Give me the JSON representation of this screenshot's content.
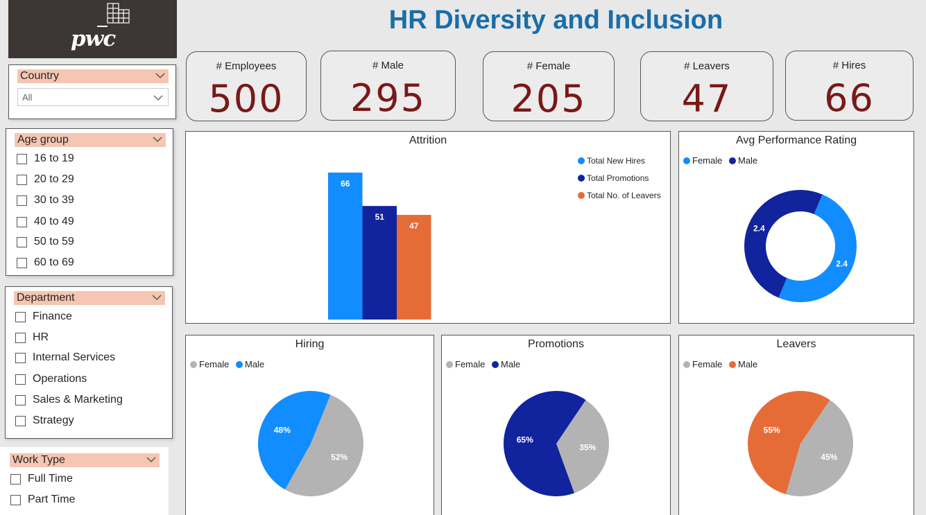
{
  "title": "HR Diversity and Inclusion",
  "logo": {
    "text": "pwc"
  },
  "colors": {
    "title": "#1a6ea8",
    "kpi_value": "#7a1818",
    "slicer_header": "#f5c6b2",
    "light_blue": "#118dff",
    "dark_blue": "#12239e",
    "orange": "#e66c37",
    "grey": "#b3b3b3"
  },
  "kpis": [
    {
      "label": "# Employees",
      "value": "500"
    },
    {
      "label": "# Male",
      "value": "295"
    },
    {
      "label": "# Female",
      "value": "205"
    },
    {
      "label": "# Leavers",
      "value": "47"
    },
    {
      "label": "# Hires",
      "value": "66"
    }
  ],
  "slicers": {
    "country": {
      "title": "Country",
      "selected": "All"
    },
    "age_group": {
      "title": "Age group",
      "options": [
        "16 to 19",
        "20 to 29",
        "30 to 39",
        "40 to 49",
        "50 to 59",
        "60 to 69"
      ]
    },
    "department": {
      "title": "Department",
      "options": [
        "Finance",
        "HR",
        "Internal Services",
        "Operations",
        "Sales & Marketing",
        "Strategy"
      ]
    },
    "work_type": {
      "title": "Work Type",
      "options": [
        "Full Time",
        "Part Time"
      ]
    }
  },
  "chart_data": [
    {
      "type": "bar",
      "title": "Attrition",
      "series": [
        {
          "name": "Total New Hires",
          "values": [
            66
          ],
          "color": "#118dff"
        },
        {
          "name": "Total Promotions",
          "values": [
            51
          ],
          "color": "#12239e"
        },
        {
          "name": "Total No. of Leavers",
          "values": [
            47
          ],
          "color": "#e66c37"
        }
      ],
      "data_labels": [
        "66",
        "51",
        "47"
      ],
      "legend": "top-right",
      "grid": false
    },
    {
      "type": "pie",
      "variant": "donut",
      "title": "Avg Performance Rating",
      "labels": [
        "Female",
        "Male"
      ],
      "values": [
        2.4,
        2.4
      ],
      "data_labels": [
        "2.4",
        "2.4"
      ],
      "colors": [
        "#118dff",
        "#12239e"
      ],
      "legend": "top-left"
    },
    {
      "type": "pie",
      "title": "Hiring",
      "labels": [
        "Female",
        "Male"
      ],
      "values": [
        52,
        48
      ],
      "data_labels": [
        "52%",
        "48%"
      ],
      "colors": [
        "#b3b3b3",
        "#118dff"
      ],
      "legend": "top-left"
    },
    {
      "type": "pie",
      "title": "Promotions",
      "labels": [
        "Female",
        "Male"
      ],
      "values": [
        35,
        65
      ],
      "data_labels": [
        "35%",
        "65%"
      ],
      "colors": [
        "#b3b3b3",
        "#12239e"
      ],
      "legend": "top-left"
    },
    {
      "type": "pie",
      "title": "Leavers",
      "labels": [
        "Female",
        "Male"
      ],
      "values": [
        45,
        55
      ],
      "data_labels": [
        "45%",
        "55%"
      ],
      "colors": [
        "#b3b3b3",
        "#e66c37"
      ],
      "legend": "top-left"
    }
  ]
}
